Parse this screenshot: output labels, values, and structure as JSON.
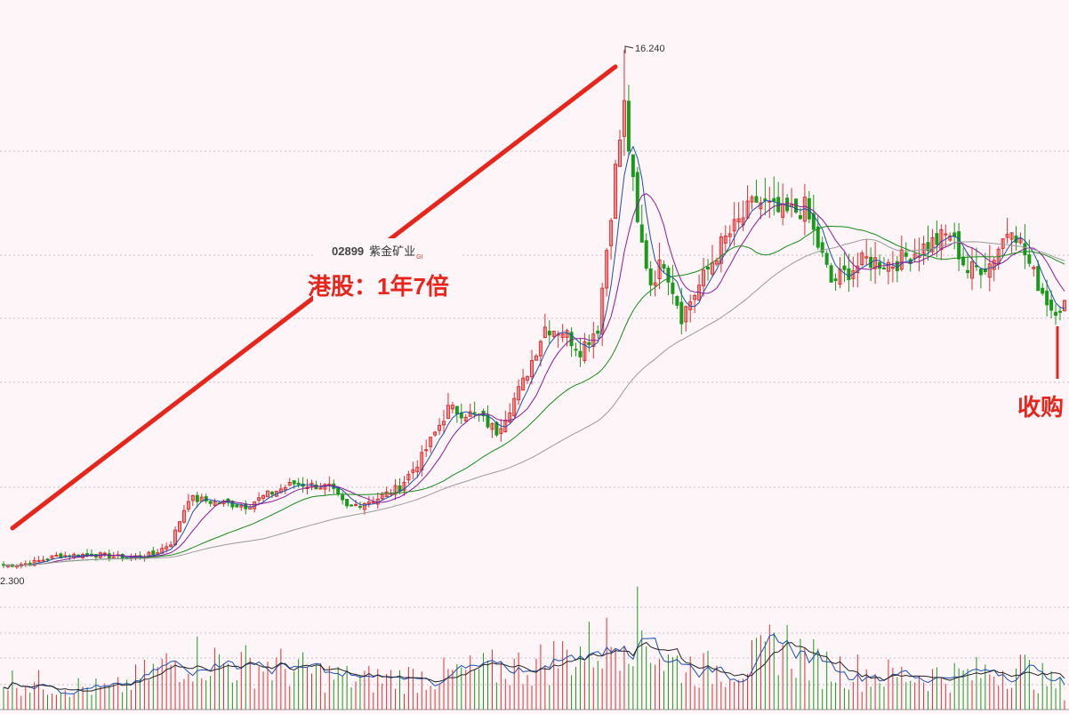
{
  "stock": {
    "code": "02899",
    "name": "紫金矿业",
    "market_mark": "GI"
  },
  "annotations": {
    "headline": "港股：1年7倍",
    "right_note": "收购"
  },
  "price_labels": {
    "high": "16.240",
    "low": "2.300"
  },
  "colors": {
    "background": "#fdf5f8",
    "up_candle": "#e03030",
    "down_candle": "#1a9a1a",
    "ma_short": "#1b4fb0",
    "ma_mid": "#8a1a9a",
    "ma_long": "#1a8a1a",
    "ma_longest": "#9a9a9a",
    "annotation_red": "#e8251b",
    "grid": "#c8c0c8"
  },
  "chart_data": {
    "type": "candlestick",
    "title": "",
    "price_range": [
      2.3,
      16.24
    ],
    "anchors": [
      [
        0,
        2.4
      ],
      [
        6,
        2.45
      ],
      [
        12,
        2.65
      ],
      [
        20,
        2.7
      ],
      [
        28,
        2.6
      ],
      [
        34,
        2.7
      ],
      [
        38,
        3.0
      ],
      [
        42,
        4.2
      ],
      [
        48,
        4.1
      ],
      [
        55,
        4.0
      ],
      [
        60,
        4.3
      ],
      [
        66,
        4.6
      ],
      [
        74,
        4.5
      ],
      [
        78,
        3.95
      ],
      [
        85,
        4.2
      ],
      [
        90,
        4.5
      ],
      [
        95,
        5.3
      ],
      [
        101,
        6.6
      ],
      [
        108,
        6.4
      ],
      [
        112,
        6.0
      ],
      [
        118,
        7.3
      ],
      [
        123,
        8.8
      ],
      [
        127,
        8.7
      ],
      [
        131,
        8.2
      ],
      [
        135,
        8.8
      ],
      [
        139,
        13.0
      ],
      [
        141,
        14.7
      ],
      [
        144,
        11.5
      ],
      [
        147,
        10.0
      ],
      [
        150,
        10.6
      ],
      [
        154,
        9.1
      ],
      [
        158,
        9.9
      ],
      [
        163,
        11.0
      ],
      [
        171,
        12.2
      ],
      [
        177,
        11.8
      ],
      [
        182,
        12.0
      ],
      [
        188,
        10.0
      ],
      [
        196,
        10.6
      ],
      [
        202,
        10.5
      ],
      [
        210,
        11.0
      ],
      [
        215,
        11.3
      ],
      [
        219,
        10.3
      ],
      [
        224,
        10.5
      ],
      [
        229,
        11.6
      ],
      [
        234,
        10.2
      ],
      [
        238,
        9.3
      ],
      [
        241,
        9.4
      ]
    ],
    "volume_anchors": [
      [
        0,
        0.3
      ],
      [
        25,
        0.2
      ],
      [
        42,
        0.55
      ],
      [
        52,
        0.45
      ],
      [
        60,
        0.45
      ],
      [
        80,
        0.3
      ],
      [
        100,
        0.35
      ],
      [
        120,
        0.45
      ],
      [
        139,
        0.7
      ],
      [
        141,
        0.95
      ],
      [
        146,
        0.75
      ],
      [
        150,
        0.5
      ],
      [
        160,
        0.4
      ],
      [
        172,
        0.5
      ],
      [
        176,
        0.7
      ],
      [
        185,
        0.45
      ],
      [
        200,
        0.35
      ],
      [
        220,
        0.35
      ],
      [
        230,
        0.45
      ],
      [
        241,
        0.2
      ]
    ],
    "moving_averages": [
      5,
      10,
      30,
      60
    ],
    "trend_line": {
      "from_bar": 0,
      "to_bar": 138
    },
    "grid": true
  }
}
